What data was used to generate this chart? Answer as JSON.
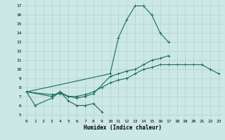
{
  "xlabel": "Humidex (Indice chaleur)",
  "bg_color": "#cce8e4",
  "grid_color": "#b0d0cc",
  "line_color": "#1a6b5e",
  "xlim": [
    -0.5,
    23.5
  ],
  "ylim": [
    4.5,
    17.5
  ],
  "xticks": [
    0,
    1,
    2,
    3,
    4,
    5,
    6,
    7,
    8,
    9,
    10,
    11,
    12,
    13,
    14,
    15,
    16,
    17,
    18,
    19,
    20,
    21,
    22,
    23
  ],
  "yticks": [
    5,
    6,
    7,
    8,
    9,
    10,
    11,
    12,
    13,
    14,
    15,
    16,
    17
  ],
  "line1_x": [
    0,
    1,
    3,
    4,
    5,
    6,
    7,
    8,
    9
  ],
  "line1_y": [
    7.5,
    6.0,
    6.8,
    7.5,
    6.5,
    6.0,
    6.0,
    6.2,
    5.3
  ],
  "line2_x": [
    0,
    3,
    4,
    5,
    6,
    7,
    8,
    9,
    10,
    11,
    12,
    13,
    14,
    15,
    16,
    17,
    18,
    19,
    20,
    21,
    22,
    23
  ],
  "line2_y": [
    7.5,
    7.0,
    7.5,
    7.0,
    7.0,
    7.2,
    7.5,
    8.0,
    8.5,
    8.8,
    9.0,
    9.5,
    10.0,
    10.2,
    10.5,
    10.5,
    10.5,
    10.5,
    10.5,
    10.5,
    10.0,
    9.5
  ],
  "line3_x": [
    0,
    3,
    4,
    5,
    6,
    7,
    8,
    10,
    11,
    12,
    13,
    14,
    15,
    16,
    17
  ],
  "line3_y": [
    7.5,
    7.2,
    7.3,
    7.0,
    6.8,
    7.0,
    7.3,
    9.2,
    9.5,
    9.8,
    10.0,
    10.5,
    11.0,
    11.2,
    11.5
  ],
  "line4_x": [
    0,
    10,
    11,
    12,
    13,
    14,
    15,
    16,
    17
  ],
  "line4_y": [
    7.5,
    9.5,
    13.5,
    15.5,
    17.0,
    17.0,
    16.0,
    14.0,
    13.0
  ]
}
